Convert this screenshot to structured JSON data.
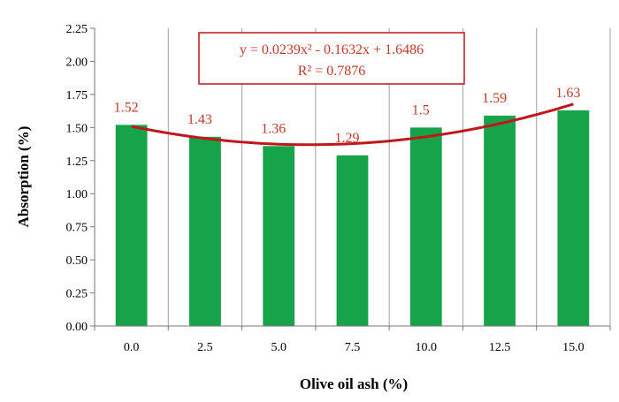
{
  "chart_data": {
    "type": "bar",
    "title": "",
    "xlabel": "Olive oil ash  (%)",
    "ylabel": "Absorption (%)",
    "categories": [
      "0.0",
      "2.5",
      "5.0",
      "7.5",
      "10.0",
      "12.5",
      "15.0"
    ],
    "series": [
      {
        "values": [
          1.52,
          1.43,
          1.36,
          1.29,
          1.5,
          1.59,
          1.63
        ]
      }
    ],
    "data_labels": [
      "1.52",
      "1.43",
      "1.36",
      "1.29",
      "1.5",
      "1.59",
      "1.63"
    ],
    "ylim": [
      0,
      2.25
    ],
    "yticks": [
      "0.00",
      "0.25",
      "0.50",
      "0.75",
      "1.00",
      "1.25",
      "1.50",
      "1.75",
      "2.00",
      "2.25"
    ],
    "grid": "vertical",
    "trendline": {
      "type": "polynomial",
      "coefficients": [
        0.0239,
        -0.1632,
        1.6486
      ],
      "equation": "y = 0.0239x² - 0.1632x + 1.6486",
      "r_squared": "R² = 0.7876"
    },
    "colors": {
      "bar": "#16a34a",
      "trendline": "#c0171b",
      "label": "#c0392b",
      "grid": "#9aa0a6"
    }
  }
}
